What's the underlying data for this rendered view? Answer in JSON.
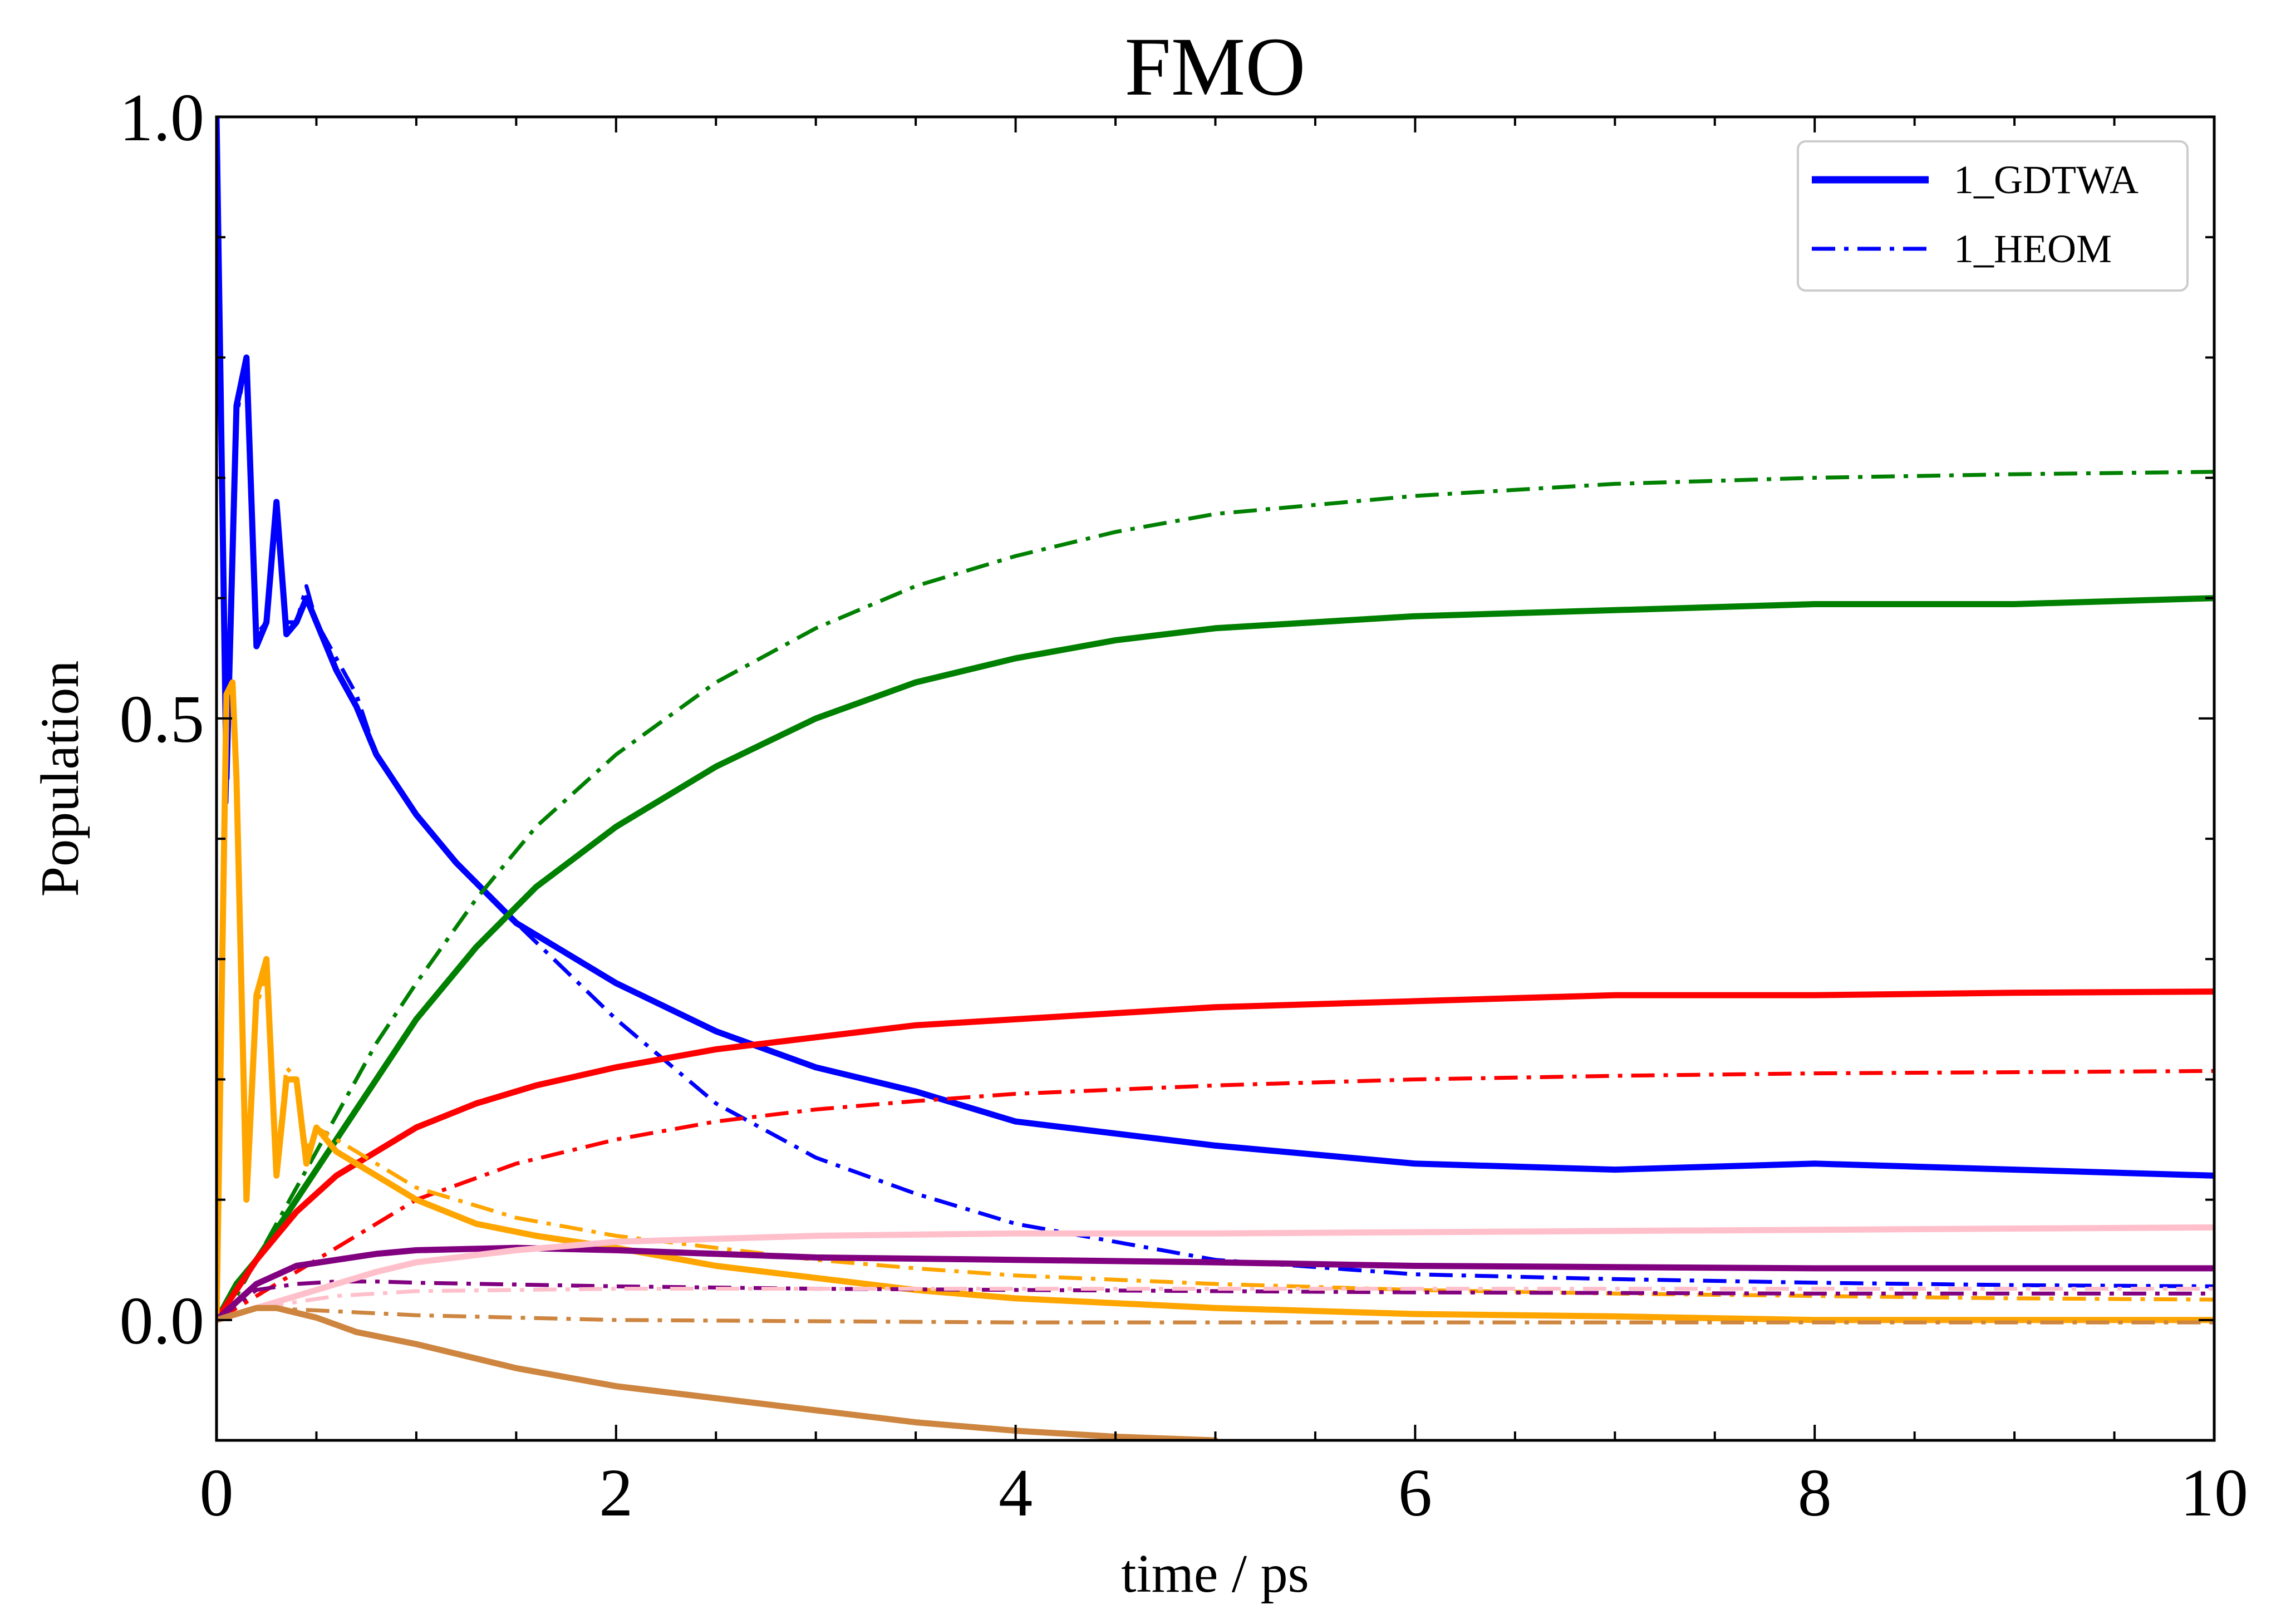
{
  "chart_data": {
    "type": "line",
    "title": "FMO",
    "xlabel": "time / ps",
    "ylabel": "Population",
    "xlim": [
      0,
      10
    ],
    "ylim": [
      -0.1,
      1.0
    ],
    "x_ticks": [
      0,
      2,
      4,
      6,
      8,
      10
    ],
    "x_tick_labels": [
      "0",
      "2",
      "4",
      "6",
      "8",
      "10"
    ],
    "y_ticks": [
      0.0,
      0.5,
      1.0
    ],
    "y_tick_labels": [
      "0.0",
      "0.5",
      "1.0"
    ],
    "grid": false,
    "legend_position": "top-right",
    "legend": [
      {
        "label": "1_GDTWA",
        "color": "#0000ff",
        "style": "solid"
      },
      {
        "label": "1_HEOM",
        "color": "#0000ff",
        "style": "dashdot"
      }
    ],
    "series": [
      {
        "color": "#0000ff",
        "style": "solid",
        "x": [
          0,
          0.05,
          0.1,
          0.15,
          0.2,
          0.25,
          0.3,
          0.35,
          0.4,
          0.45,
          0.5,
          0.6,
          0.7,
          0.8,
          1.0,
          1.2,
          1.5,
          2.0,
          2.5,
          3.0,
          3.5,
          4.0,
          5.0,
          6.0,
          7.0,
          8.0,
          9.0,
          10.0
        ],
        "y": [
          1.0,
          0.45,
          0.76,
          0.8,
          0.56,
          0.58,
          0.68,
          0.57,
          0.58,
          0.6,
          0.58,
          0.54,
          0.51,
          0.47,
          0.42,
          0.38,
          0.33,
          0.28,
          0.24,
          0.21,
          0.19,
          0.165,
          0.145,
          0.13,
          0.125,
          0.13,
          0.125,
          0.12
        ]
      },
      {
        "color": "#0000ff",
        "style": "dashdot",
        "x": [
          0,
          0.05,
          0.1,
          0.15,
          0.2,
          0.25,
          0.3,
          0.35,
          0.4,
          0.45,
          0.5,
          0.6,
          0.7,
          0.8,
          1.0,
          1.2,
          1.5,
          2.0,
          2.5,
          3.0,
          3.5,
          4.0,
          5.0,
          6.0,
          7.0,
          8.0,
          9.0,
          10.0
        ],
        "y": [
          1.0,
          0.43,
          0.75,
          0.8,
          0.57,
          0.58,
          0.67,
          0.58,
          0.58,
          0.61,
          0.58,
          0.55,
          0.52,
          0.47,
          0.42,
          0.38,
          0.33,
          0.25,
          0.18,
          0.135,
          0.105,
          0.08,
          0.05,
          0.038,
          0.034,
          0.031,
          0.029,
          0.028
        ]
      },
      {
        "color": "#008000",
        "style": "solid",
        "x": [
          0,
          0.1,
          0.2,
          0.4,
          0.6,
          0.8,
          1.0,
          1.3,
          1.6,
          2.0,
          2.5,
          3.0,
          3.5,
          4.0,
          4.5,
          5.0,
          6.0,
          7.0,
          8.0,
          9.0,
          10.0
        ],
        "y": [
          0.0,
          0.03,
          0.05,
          0.1,
          0.15,
          0.2,
          0.25,
          0.31,
          0.36,
          0.41,
          0.46,
          0.5,
          0.53,
          0.55,
          0.565,
          0.575,
          0.585,
          0.59,
          0.595,
          0.595,
          0.6
        ]
      },
      {
        "color": "#008000",
        "style": "dashdot",
        "x": [
          0,
          0.1,
          0.2,
          0.4,
          0.6,
          0.8,
          1.0,
          1.3,
          1.6,
          2.0,
          2.5,
          3.0,
          3.5,
          4.0,
          4.5,
          5.0,
          6.0,
          7.0,
          8.0,
          9.0,
          10.0
        ],
        "y": [
          0.0,
          0.02,
          0.05,
          0.11,
          0.17,
          0.23,
          0.28,
          0.35,
          0.41,
          0.47,
          0.53,
          0.575,
          0.61,
          0.635,
          0.655,
          0.67,
          0.685,
          0.695,
          0.7,
          0.703,
          0.705
        ]
      },
      {
        "color": "#ff0000",
        "style": "solid",
        "x": [
          0,
          0.2,
          0.4,
          0.6,
          0.8,
          1.0,
          1.3,
          1.6,
          2.0,
          2.5,
          3.0,
          3.5,
          4.0,
          5.0,
          6.0,
          7.0,
          8.0,
          9.0,
          10.0
        ],
        "y": [
          0.0,
          0.05,
          0.09,
          0.12,
          0.14,
          0.16,
          0.18,
          0.195,
          0.21,
          0.225,
          0.235,
          0.245,
          0.25,
          0.26,
          0.265,
          0.27,
          0.27,
          0.272,
          0.273
        ]
      },
      {
        "color": "#ff0000",
        "style": "dashdot",
        "x": [
          0,
          0.2,
          0.4,
          0.6,
          0.8,
          1.0,
          1.5,
          2.0,
          2.5,
          3.0,
          3.5,
          4.0,
          5.0,
          6.0,
          7.0,
          8.0,
          9.0,
          10.0
        ],
        "y": [
          0.0,
          0.02,
          0.04,
          0.06,
          0.08,
          0.1,
          0.13,
          0.15,
          0.165,
          0.175,
          0.182,
          0.188,
          0.195,
          0.2,
          0.203,
          0.205,
          0.206,
          0.207
        ]
      },
      {
        "color": "#ffa500",
        "style": "solid",
        "x": [
          0,
          0.05,
          0.08,
          0.1,
          0.15,
          0.2,
          0.25,
          0.3,
          0.35,
          0.4,
          0.45,
          0.5,
          0.6,
          0.8,
          1.0,
          1.3,
          1.6,
          2.0,
          2.5,
          3.0,
          3.5,
          4.0,
          5.0,
          6.0,
          7.0,
          8.0,
          9.0,
          10.0
        ],
        "y": [
          0.0,
          0.52,
          0.53,
          0.45,
          0.1,
          0.27,
          0.3,
          0.12,
          0.2,
          0.2,
          0.13,
          0.16,
          0.14,
          0.12,
          0.1,
          0.08,
          0.07,
          0.06,
          0.045,
          0.035,
          0.025,
          0.018,
          0.01,
          0.005,
          0.003,
          0.0,
          0.0,
          0.0
        ]
      },
      {
        "color": "#ffa500",
        "style": "dashdot",
        "x": [
          0,
          0.05,
          0.08,
          0.1,
          0.15,
          0.2,
          0.25,
          0.3,
          0.35,
          0.4,
          0.45,
          0.5,
          0.6,
          0.8,
          1.0,
          1.5,
          2.0,
          2.5,
          3.0,
          3.5,
          4.0,
          5.0,
          6.0,
          7.0,
          8.0,
          9.0,
          10.0
        ],
        "y": [
          0.0,
          0.51,
          0.52,
          0.44,
          0.11,
          0.26,
          0.29,
          0.13,
          0.21,
          0.2,
          0.14,
          0.16,
          0.15,
          0.13,
          0.11,
          0.085,
          0.07,
          0.06,
          0.05,
          0.043,
          0.037,
          0.03,
          0.025,
          0.022,
          0.02,
          0.018,
          0.017
        ]
      },
      {
        "color": "#800080",
        "style": "solid",
        "x": [
          0,
          0.2,
          0.4,
          0.6,
          0.8,
          1.0,
          1.5,
          2.0,
          2.5,
          3.0,
          4.0,
          5.0,
          6.0,
          7.0,
          8.0,
          9.0,
          10.0
        ],
        "y": [
          0.0,
          0.03,
          0.045,
          0.05,
          0.055,
          0.058,
          0.06,
          0.058,
          0.055,
          0.052,
          0.05,
          0.048,
          0.045,
          0.044,
          0.043,
          0.043,
          0.043
        ]
      },
      {
        "color": "#800080",
        "style": "dashdot",
        "x": [
          0,
          0.2,
          0.4,
          0.6,
          0.8,
          1.0,
          2.0,
          3.0,
          4.0,
          5.0,
          6.0,
          8.0,
          10.0
        ],
        "y": [
          0.0,
          0.025,
          0.03,
          0.032,
          0.032,
          0.031,
          0.028,
          0.026,
          0.025,
          0.024,
          0.023,
          0.022,
          0.022
        ]
      },
      {
        "color": "#ffc0cb",
        "style": "solid",
        "x": [
          0,
          0.2,
          0.4,
          0.6,
          0.8,
          1.0,
          1.5,
          2.0,
          3.0,
          4.0,
          5.0,
          6.0,
          7.0,
          8.0,
          9.0,
          10.0
        ],
        "y": [
          0.0,
          0.01,
          0.02,
          0.03,
          0.04,
          0.048,
          0.058,
          0.065,
          0.07,
          0.072,
          0.072,
          0.073,
          0.074,
          0.075,
          0.076,
          0.077
        ]
      },
      {
        "color": "#ffc0cb",
        "style": "dashdot",
        "x": [
          0,
          0.2,
          0.4,
          0.6,
          0.8,
          1.0,
          1.5,
          2.0,
          3.0,
          4.0,
          5.0,
          6.0,
          8.0,
          10.0
        ],
        "y": [
          0.0,
          0.01,
          0.015,
          0.02,
          0.022,
          0.024,
          0.025,
          0.026,
          0.026,
          0.026,
          0.026,
          0.026,
          0.026,
          0.026
        ]
      },
      {
        "color": "#cd853f",
        "style": "solid",
        "x": [
          0,
          0.2,
          0.3,
          0.5,
          0.7,
          1.0,
          1.5,
          2.0,
          2.5,
          3.0,
          3.5,
          4.0,
          4.5,
          5.0
        ],
        "y": [
          0.0,
          0.01,
          0.01,
          0.002,
          -0.01,
          -0.02,
          -0.04,
          -0.055,
          -0.065,
          -0.075,
          -0.085,
          -0.092,
          -0.097,
          -0.1
        ]
      },
      {
        "color": "#cd853f",
        "style": "dashdot",
        "x": [
          0,
          0.2,
          0.5,
          1.0,
          1.5,
          2.0,
          3.0,
          4.0,
          5.0,
          6.0,
          8.0,
          10.0
        ],
        "y": [
          0.0,
          0.01,
          0.008,
          0.004,
          0.002,
          0.0,
          -0.001,
          -0.002,
          -0.002,
          -0.002,
          -0.002,
          -0.002
        ]
      }
    ]
  }
}
